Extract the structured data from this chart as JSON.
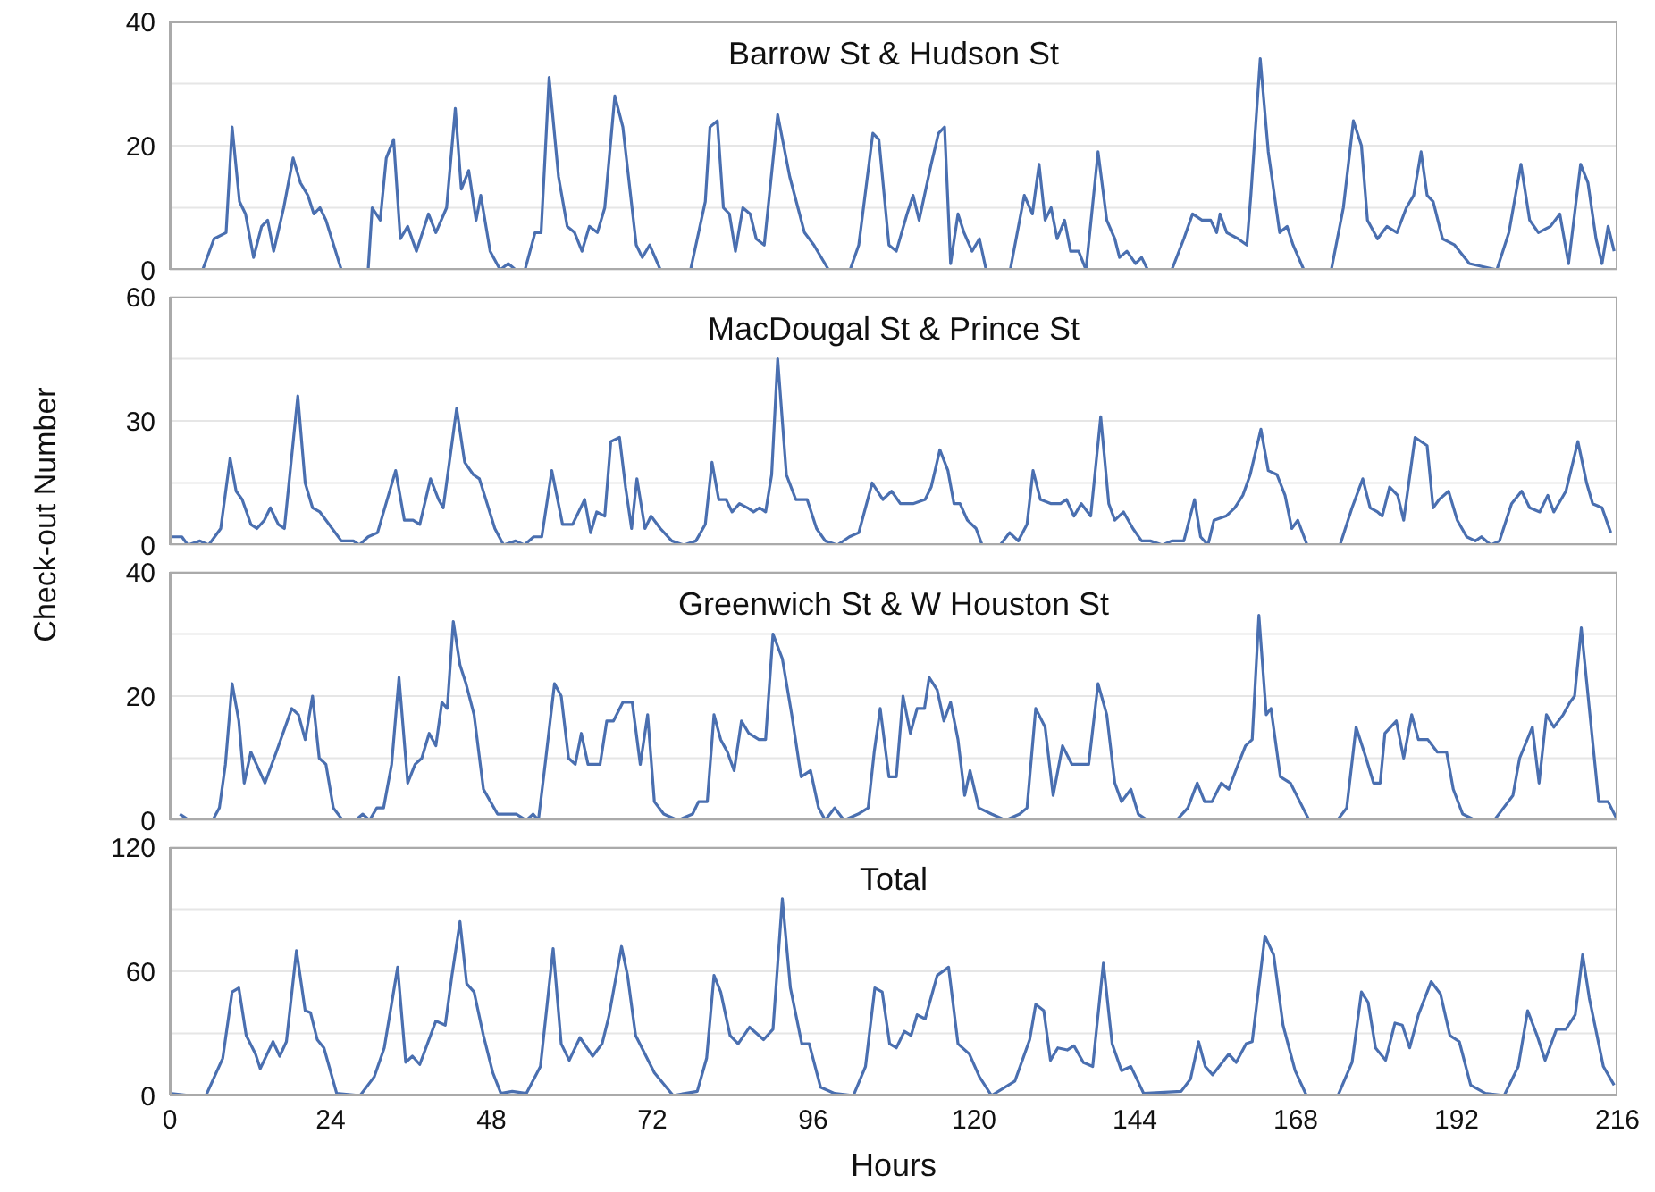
{
  "chart_data": [
    {
      "type": "line",
      "title": "Barrow St & Hudson St",
      "color": "#4a6fb0",
      "xlim": [
        0,
        216
      ],
      "xticks": [
        0,
        24,
        48,
        72,
        96,
        120,
        144,
        168,
        192,
        216
      ],
      "ylim": [
        0,
        40
      ],
      "yticks": [
        0,
        {
          "value": 10,
          "label": null
        },
        20,
        {
          "value": 30,
          "label": null
        },
        40
      ],
      "grid": "y",
      "tick_labels": "y",
      "x": [
        0,
        4.9,
        6.6,
        8.4,
        9.3,
        10.4,
        11.3,
        12.5,
        13.7,
        14.6,
        15.5,
        17,
        18.4,
        19.5,
        20.6,
        21.5,
        22.4,
        23.3,
        25.6,
        29.6,
        30.2,
        31.4,
        32.3,
        33.4,
        34.4,
        35.5,
        36.8,
        38.6,
        39.7,
        41.3,
        42.6,
        43.5,
        44.6,
        45.7,
        46.4,
        47.8,
        49.3,
        50.5,
        51.6,
        53,
        54.5,
        55.4,
        56.6,
        58,
        59.3,
        60.4,
        61.5,
        62.6,
        63.8,
        64.9,
        66.4,
        67.6,
        69.6,
        70.5,
        71.6,
        73.2,
        77.7,
        79.9,
        80.6,
        81.7,
        82.6,
        83.5,
        84.4,
        85.5,
        86.6,
        87.5,
        88.7,
        90.7,
        92.5,
        94.7,
        96.1,
        98.3,
        101.5,
        102.8,
        104.9,
        105.8,
        107.3,
        108.4,
        110,
        110.9,
        111.8,
        113.6,
        114.7,
        115.6,
        116.5,
        117.6,
        118.5,
        119.7,
        120.8,
        121.8,
        125.4,
        127.5,
        128.7,
        129.7,
        130.6,
        131.5,
        132.4,
        133.5,
        134.4,
        135.6,
        136.7,
        138.5,
        139.8,
        141,
        141.7,
        142.8,
        144.1,
        145,
        145.9,
        149.5,
        151.3,
        152.6,
        154,
        155.3,
        156.2,
        156.7,
        157.7,
        159.4,
        160.7,
        161.3,
        162.7,
        163.9,
        165.6,
        166.7,
        167.6,
        169.2,
        173.3,
        175.1,
        176.6,
        177.8,
        178.7,
        180.2,
        181.6,
        183.1,
        184.5,
        185.6,
        186.7,
        187.6,
        188.5,
        189.9,
        191.7,
        193.9,
        198,
        199.8,
        201.6,
        202.9,
        204.2,
        206,
        207.4,
        208.7,
        210.5,
        211.6,
        212.8,
        213.7,
        214.6,
        215.5
      ],
      "values": [
        0,
        0,
        5,
        6,
        23,
        11,
        9,
        2,
        7,
        8,
        3,
        10,
        18,
        14,
        12,
        9,
        10,
        8,
        0,
        0,
        10,
        8,
        18,
        21,
        5,
        7,
        3,
        9,
        6,
        10,
        26,
        13,
        16,
        8,
        12,
        3,
        0,
        1,
        0,
        0,
        6,
        6,
        31,
        15,
        7,
        6,
        3,
        7,
        6,
        10,
        28,
        23,
        4,
        2,
        4,
        0,
        0,
        11,
        23,
        24,
        10,
        9,
        3,
        10,
        9,
        5,
        4,
        25,
        15,
        6,
        4,
        0,
        0,
        4,
        22,
        21,
        4,
        3,
        9,
        12,
        8,
        17,
        22,
        23,
        1,
        9,
        6,
        3,
        5,
        0,
        0,
        12,
        9,
        17,
        8,
        10,
        5,
        8,
        3,
        3,
        0,
        19,
        8,
        5,
        2,
        3,
        1,
        2,
        0,
        0,
        5,
        9,
        8,
        8,
        6,
        9,
        6,
        5,
        4,
        12,
        34,
        19,
        6,
        7,
        4,
        0,
        0,
        10,
        24,
        20,
        8,
        5,
        7,
        6,
        10,
        12,
        19,
        12,
        11,
        5,
        4,
        1,
        0,
        6,
        17,
        8,
        6,
        7,
        9,
        1,
        17,
        14,
        5,
        1,
        7,
        3
      ]
    },
    {
      "type": "line",
      "title": "MacDougal St & Prince St",
      "ylabel": "Check-out Number",
      "color": "#4a6fb0",
      "xlim": [
        0,
        216
      ],
      "xticks": [
        0,
        24,
        48,
        72,
        96,
        120,
        144,
        168,
        192,
        216
      ],
      "ylim": [
        0,
        60
      ],
      "yticks": [
        0,
        {
          "value": 15,
          "label": null
        },
        30,
        {
          "value": 45,
          "label": null
        },
        60
      ],
      "grid": "y",
      "tick_labels": "y",
      "x": [
        0.4,
        1.8,
        2.7,
        4.5,
        5.8,
        7.6,
        9,
        9.9,
        10.8,
        12.1,
        13,
        14.1,
        15,
        16.2,
        17.1,
        19.1,
        20.2,
        21.3,
        22.4,
        25.6,
        27.4,
        28.3,
        29.6,
        31,
        33.7,
        35,
        36.3,
        37.3,
        38.9,
        40.1,
        40.8,
        42.8,
        44,
        45.3,
        46.2,
        48.5,
        49.8,
        51.6,
        52.9,
        54.3,
        55.5,
        57,
        58.6,
        60.1,
        61.9,
        62.8,
        63.7,
        64.9,
        65.8,
        67.1,
        68,
        68.9,
        69.7,
        70.9,
        71.8,
        73.2,
        74.9,
        76.7,
        78.5,
        79.9,
        80.9,
        81.9,
        83,
        83.9,
        85,
        86.2,
        87.1,
        88,
        88.9,
        89.8,
        90.7,
        92,
        93.4,
        95.1,
        96.5,
        97.8,
        99.6,
        101.4,
        102.8,
        104.8,
        106.4,
        107.7,
        109,
        110.9,
        112.7,
        113.6,
        114.9,
        116.1,
        117,
        117.9,
        119,
        120.3,
        121.2,
        123.9,
        125.3,
        126.6,
        127.9,
        128.8,
        129.9,
        131.5,
        132.9,
        133.8,
        134.9,
        136,
        137.4,
        138.9,
        140.1,
        141,
        142.3,
        143.7,
        145,
        146.3,
        148.1,
        149.5,
        151.3,
        152.9,
        153.8,
        154.9,
        155.8,
        157.6,
        158.9,
        160.1,
        161.2,
        162.8,
        163.9,
        165.2,
        166.4,
        167.4,
        168.3,
        169.7,
        174.6,
        176.4,
        178,
        179.1,
        180.2,
        180.9,
        182,
        183.2,
        184.1,
        185.8,
        187.6,
        188.5,
        189.4,
        190.8,
        192.1,
        193.5,
        194.8,
        195.7,
        197.1,
        198.4,
        200.2,
        201.7,
        202.9,
        204.4,
        205.6,
        206.5,
        208.3,
        210.1,
        211.4,
        212.3,
        213.7,
        215
      ],
      "values": [
        2,
        2,
        0,
        1,
        0,
        4,
        21,
        13,
        11,
        5,
        4,
        6,
        9,
        5,
        4,
        36,
        15,
        9,
        8,
        1,
        1,
        0,
        2,
        3,
        18,
        6,
        6,
        5,
        16,
        11,
        9,
        33,
        20,
        17,
        16,
        4,
        0,
        1,
        0,
        2,
        2,
        18,
        5,
        5,
        11,
        3,
        8,
        7,
        25,
        26,
        14,
        4,
        16,
        4,
        7,
        4,
        1,
        0,
        1,
        5,
        20,
        11,
        11,
        8,
        10,
        9,
        8,
        9,
        8,
        17,
        45,
        17,
        11,
        11,
        4,
        1,
        0,
        2,
        3,
        15,
        11,
        13,
        10,
        10,
        11,
        14,
        23,
        18,
        10,
        10,
        6,
        4,
        0,
        0,
        3,
        1,
        5,
        18,
        11,
        10,
        10,
        11,
        7,
        10,
        7,
        31,
        10,
        6,
        8,
        4,
        1,
        1,
        0,
        1,
        1,
        11,
        2,
        0,
        6,
        7,
        9,
        12,
        17,
        28,
        18,
        17,
        12,
        4,
        6,
        0,
        0,
        9,
        16,
        9,
        8,
        7,
        14,
        12,
        6,
        26,
        24,
        9,
        11,
        13,
        6,
        2,
        1,
        2,
        0,
        1,
        10,
        13,
        9,
        8,
        12,
        8,
        13,
        25,
        15,
        10,
        9,
        3
      ]
    },
    {
      "type": "line",
      "title": "Greenwich St & W Houston St",
      "color": "#4a6fb0",
      "xlim": [
        0,
        216
      ],
      "xticks": [
        0,
        24,
        48,
        72,
        96,
        120,
        144,
        168,
        192,
        216
      ],
      "ylim": [
        0,
        40
      ],
      "yticks": [
        0,
        {
          "value": 10,
          "label": null
        },
        20,
        {
          "value": 30,
          "label": null
        },
        40
      ],
      "grid": "y",
      "tick_labels": "y",
      "x": [
        1.5,
        2.9,
        6.4,
        7.4,
        8.3,
        9.3,
        10.3,
        11.1,
        12.1,
        14.2,
        15.9,
        18.2,
        19.2,
        20.2,
        21.3,
        22.3,
        23.3,
        24.4,
        25.8,
        27.7,
        28.8,
        29.8,
        30.9,
        31.9,
        33.1,
        34.2,
        35.5,
        36.6,
        37.6,
        38.7,
        39.7,
        40.6,
        41.4,
        42.3,
        43.3,
        44.2,
        45.4,
        46.8,
        48.9,
        50.3,
        51.7,
        53.2,
        54.2,
        55,
        56,
        57.4,
        58.4,
        59.5,
        60.5,
        61.4,
        62.4,
        63.4,
        64.2,
        65.2,
        66.2,
        67.6,
        69,
        70.2,
        71.3,
        72.3,
        73.7,
        75.8,
        78,
        78.9,
        80.2,
        81.2,
        82.2,
        83.2,
        84.2,
        85.3,
        86.4,
        87.9,
        88.9,
        90,
        91.4,
        92.8,
        94.2,
        95.6,
        96.8,
        97.8,
        99.2,
        100.6,
        102.7,
        104.2,
        105.1,
        106,
        107.3,
        108.4,
        109.4,
        110.5,
        111.5,
        112.6,
        113.3,
        114.5,
        115.5,
        116.5,
        117.6,
        118.6,
        119.4,
        120.7,
        122.6,
        124.7,
        126.8,
        127.9,
        129.2,
        130.6,
        131.8,
        133.2,
        134.6,
        136,
        137.1,
        138.5,
        139.8,
        141,
        142,
        143.4,
        144.5,
        145.9,
        150.2,
        151.9,
        153.3,
        154.4,
        155.5,
        156.9,
        158,
        159.4,
        160.5,
        161.5,
        162.5,
        163.6,
        164.3,
        165.7,
        167.2,
        168.6,
        170,
        174.2,
        175.6,
        177,
        178.5,
        179.6,
        180.6,
        181.3,
        183,
        184.1,
        185.3,
        186.3,
        187.7,
        189.1,
        190.5,
        191.5,
        192.9,
        194.8,
        197.6,
        199,
        200.4,
        201.4,
        203.3,
        204.3,
        205.4,
        206.5,
        207.9,
        208.9,
        209.6,
        210.6,
        211.8,
        213.2,
        214.6,
        216
      ],
      "values": [
        1,
        0,
        0,
        2,
        9,
        22,
        16,
        6,
        11,
        6,
        11,
        18,
        17,
        13,
        20,
        10,
        9,
        2,
        0,
        0,
        1,
        0,
        2,
        2,
        9,
        23,
        6,
        9,
        10,
        14,
        12,
        19,
        18,
        32,
        25,
        22,
        17,
        5,
        1,
        1,
        1,
        0,
        1,
        0,
        9,
        22,
        20,
        10,
        9,
        14,
        9,
        9,
        9,
        16,
        16,
        19,
        19,
        9,
        17,
        3,
        1,
        0,
        1,
        3,
        3,
        17,
        13,
        11,
        8,
        16,
        14,
        13,
        13,
        30,
        26,
        17,
        7,
        8,
        2,
        0,
        2,
        0,
        1,
        2,
        11,
        18,
        7,
        7,
        20,
        14,
        18,
        18,
        23,
        21,
        16,
        19,
        13,
        4,
        8,
        2,
        1,
        0,
        1,
        2,
        18,
        15,
        4,
        12,
        9,
        9,
        9,
        22,
        17,
        6,
        3,
        5,
        1,
        0,
        0,
        2,
        6,
        3,
        3,
        6,
        5,
        9,
        12,
        13,
        33,
        17,
        18,
        7,
        6,
        3,
        0,
        0,
        2,
        15,
        10,
        6,
        6,
        14,
        16,
        10,
        17,
        13,
        13,
        11,
        11,
        5,
        1,
        0,
        0,
        2,
        4,
        10,
        15,
        6,
        17,
        15,
        17,
        19,
        20,
        31,
        18,
        3,
        3,
        0
      ]
    },
    {
      "type": "line",
      "title": "Total",
      "xlabel": "Hours",
      "color": "#4a6fb0",
      "xlim": [
        0,
        216
      ],
      "xticks": [
        0,
        24,
        48,
        72,
        96,
        120,
        144,
        168,
        192,
        216
      ],
      "ylim": [
        0,
        120
      ],
      "yticks": [
        0,
        {
          "value": 30,
          "label": null
        },
        60,
        {
          "value": 90,
          "label": null
        },
        120
      ],
      "grid": "y",
      "x": [
        0,
        3,
        5.4,
        7.9,
        9.3,
        10.3,
        11.4,
        12.8,
        13.5,
        15.4,
        16.4,
        17.4,
        18.9,
        20.2,
        21,
        22,
        23,
        24.9,
        28.4,
        30.5,
        32,
        34,
        35.2,
        36.2,
        37.3,
        39.7,
        41.1,
        42.1,
        43.3,
        44.3,
        45.4,
        46.8,
        48.2,
        49.4,
        51.1,
        53.2,
        55.3,
        57.2,
        58.4,
        59.6,
        61.2,
        63.1,
        64.5,
        65.5,
        67.4,
        68.3,
        69.5,
        72.3,
        75.1,
        78.7,
        80.1,
        81.2,
        82.2,
        83.6,
        84.8,
        86.5,
        88.6,
        90,
        91.4,
        92.6,
        94.3,
        95.4,
        97.1,
        99.2,
        102,
        103.8,
        105.2,
        106.3,
        107.4,
        108.4,
        109.6,
        110.6,
        111.5,
        112.7,
        114.5,
        116.2,
        117.6,
        119.3,
        120.8,
        122.6,
        126.1,
        128.3,
        129.2,
        130.4,
        131.4,
        132.5,
        133.9,
        134.9,
        136.3,
        137.7,
        139.3,
        140.6,
        142,
        143.4,
        145.3,
        150.9,
        152.3,
        153.5,
        154.5,
        155.6,
        158,
        159.1,
        160.6,
        161.5,
        163.4,
        164.7,
        166.1,
        167.9,
        169.6,
        174.3,
        176.4,
        177.8,
        178.8,
        179.9,
        181.4,
        182.8,
        183.9,
        185,
        186.3,
        188.2,
        189.6,
        191,
        192.4,
        194.1,
        196.3,
        199.1,
        201.2,
        202.6,
        204,
        205.2,
        206.9,
        208.3,
        209.7,
        210.8,
        211.8,
        213.9,
        215.5
      ],
      "values": [
        1,
        0,
        0,
        18,
        50,
        52,
        29,
        20,
        13,
        26,
        19,
        26,
        70,
        41,
        40,
        27,
        23,
        1,
        0,
        9,
        23,
        62,
        16,
        19,
        15,
        36,
        34,
        58,
        84,
        54,
        50,
        29,
        11,
        1,
        2,
        1,
        14,
        71,
        25,
        17,
        28,
        19,
        25,
        38,
        72,
        58,
        29,
        11,
        0,
        2,
        18,
        58,
        50,
        29,
        25,
        33,
        27,
        32,
        95,
        52,
        25,
        25,
        4,
        1,
        0,
        14,
        52,
        50,
        25,
        23,
        31,
        29,
        39,
        37,
        58,
        62,
        25,
        20,
        9,
        0,
        7,
        27,
        44,
        41,
        17,
        23,
        22,
        24,
        16,
        14,
        64,
        25,
        12,
        14,
        1,
        2,
        8,
        26,
        14,
        10,
        20,
        16,
        25,
        26,
        77,
        68,
        34,
        12,
        0,
        0,
        16,
        50,
        45,
        23,
        17,
        35,
        34,
        23,
        39,
        55,
        49,
        29,
        26,
        5,
        1,
        0,
        14,
        41,
        29,
        17,
        32,
        32,
        39,
        68,
        47,
        14,
        5
      ]
    }
  ]
}
